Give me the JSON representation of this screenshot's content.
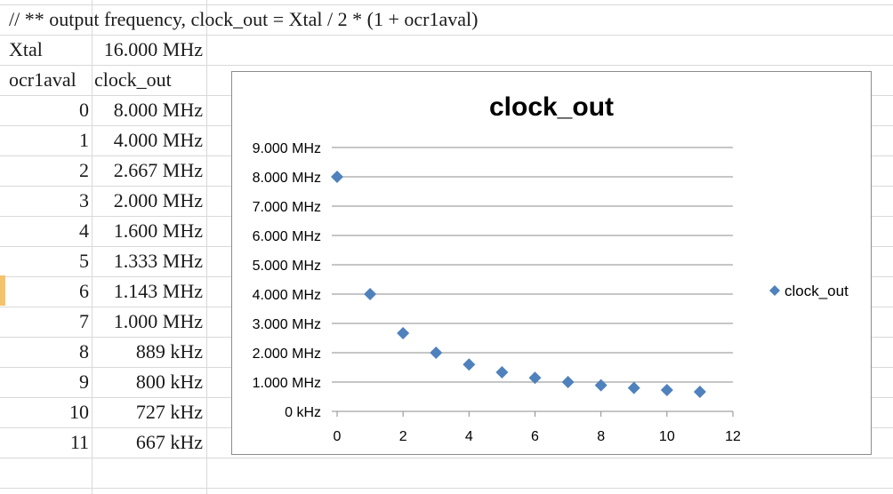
{
  "sheet": {
    "comment": "// ** output frequency, clock_out =  Xtal / 2 * (1 + ocr1aval)",
    "xtal_label": "Xtal",
    "xtal_value": "16.000 MHz",
    "col_a_header": "ocr1aval",
    "col_b_header": "clock_out",
    "rows": [
      {
        "ocr": "0",
        "clock": "8.000 MHz"
      },
      {
        "ocr": "1",
        "clock": "4.000 MHz"
      },
      {
        "ocr": "2",
        "clock": "2.667 MHz"
      },
      {
        "ocr": "3",
        "clock": "2.000 MHz"
      },
      {
        "ocr": "4",
        "clock": "1.600 MHz"
      },
      {
        "ocr": "5",
        "clock": "1.333 MHz"
      },
      {
        "ocr": "6",
        "clock": "1.143 MHz"
      },
      {
        "ocr": "7",
        "clock": "1.000 MHz"
      },
      {
        "ocr": "8",
        "clock": "889 kHz"
      },
      {
        "ocr": "9",
        "clock": "800 kHz"
      },
      {
        "ocr": "10",
        "clock": "727 kHz"
      },
      {
        "ocr": "11",
        "clock": "667 kHz"
      }
    ]
  },
  "chart_data": {
    "type": "scatter",
    "title": "clock_out",
    "xlabel": "",
    "ylabel": "",
    "xlim": [
      0,
      12
    ],
    "ylim": [
      0,
      9
    ],
    "x_ticks": [
      "0",
      "2",
      "4",
      "6",
      "8",
      "10",
      "12"
    ],
    "x_tick_values": [
      0,
      2,
      4,
      6,
      8,
      10,
      12
    ],
    "y_ticks": [
      "0 kHz",
      "1.000 MHz",
      "2.000 MHz",
      "3.000 MHz",
      "4.000 MHz",
      "5.000 MHz",
      "6.000 MHz",
      "7.000 MHz",
      "8.000 MHz",
      "9.000 MHz"
    ],
    "y_tick_values": [
      0,
      1,
      2,
      3,
      4,
      5,
      6,
      7,
      8,
      9
    ],
    "grid": true,
    "legend_position": "right",
    "series": [
      {
        "name": "clock_out",
        "color": "#4f81bd",
        "marker": "diamond",
        "x": [
          0,
          1,
          2,
          3,
          4,
          5,
          6,
          7,
          8,
          9,
          10,
          11
        ],
        "y": [
          8.0,
          4.0,
          2.667,
          2.0,
          1.6,
          1.333,
          1.143,
          1.0,
          0.889,
          0.8,
          0.727,
          0.667
        ]
      }
    ]
  }
}
